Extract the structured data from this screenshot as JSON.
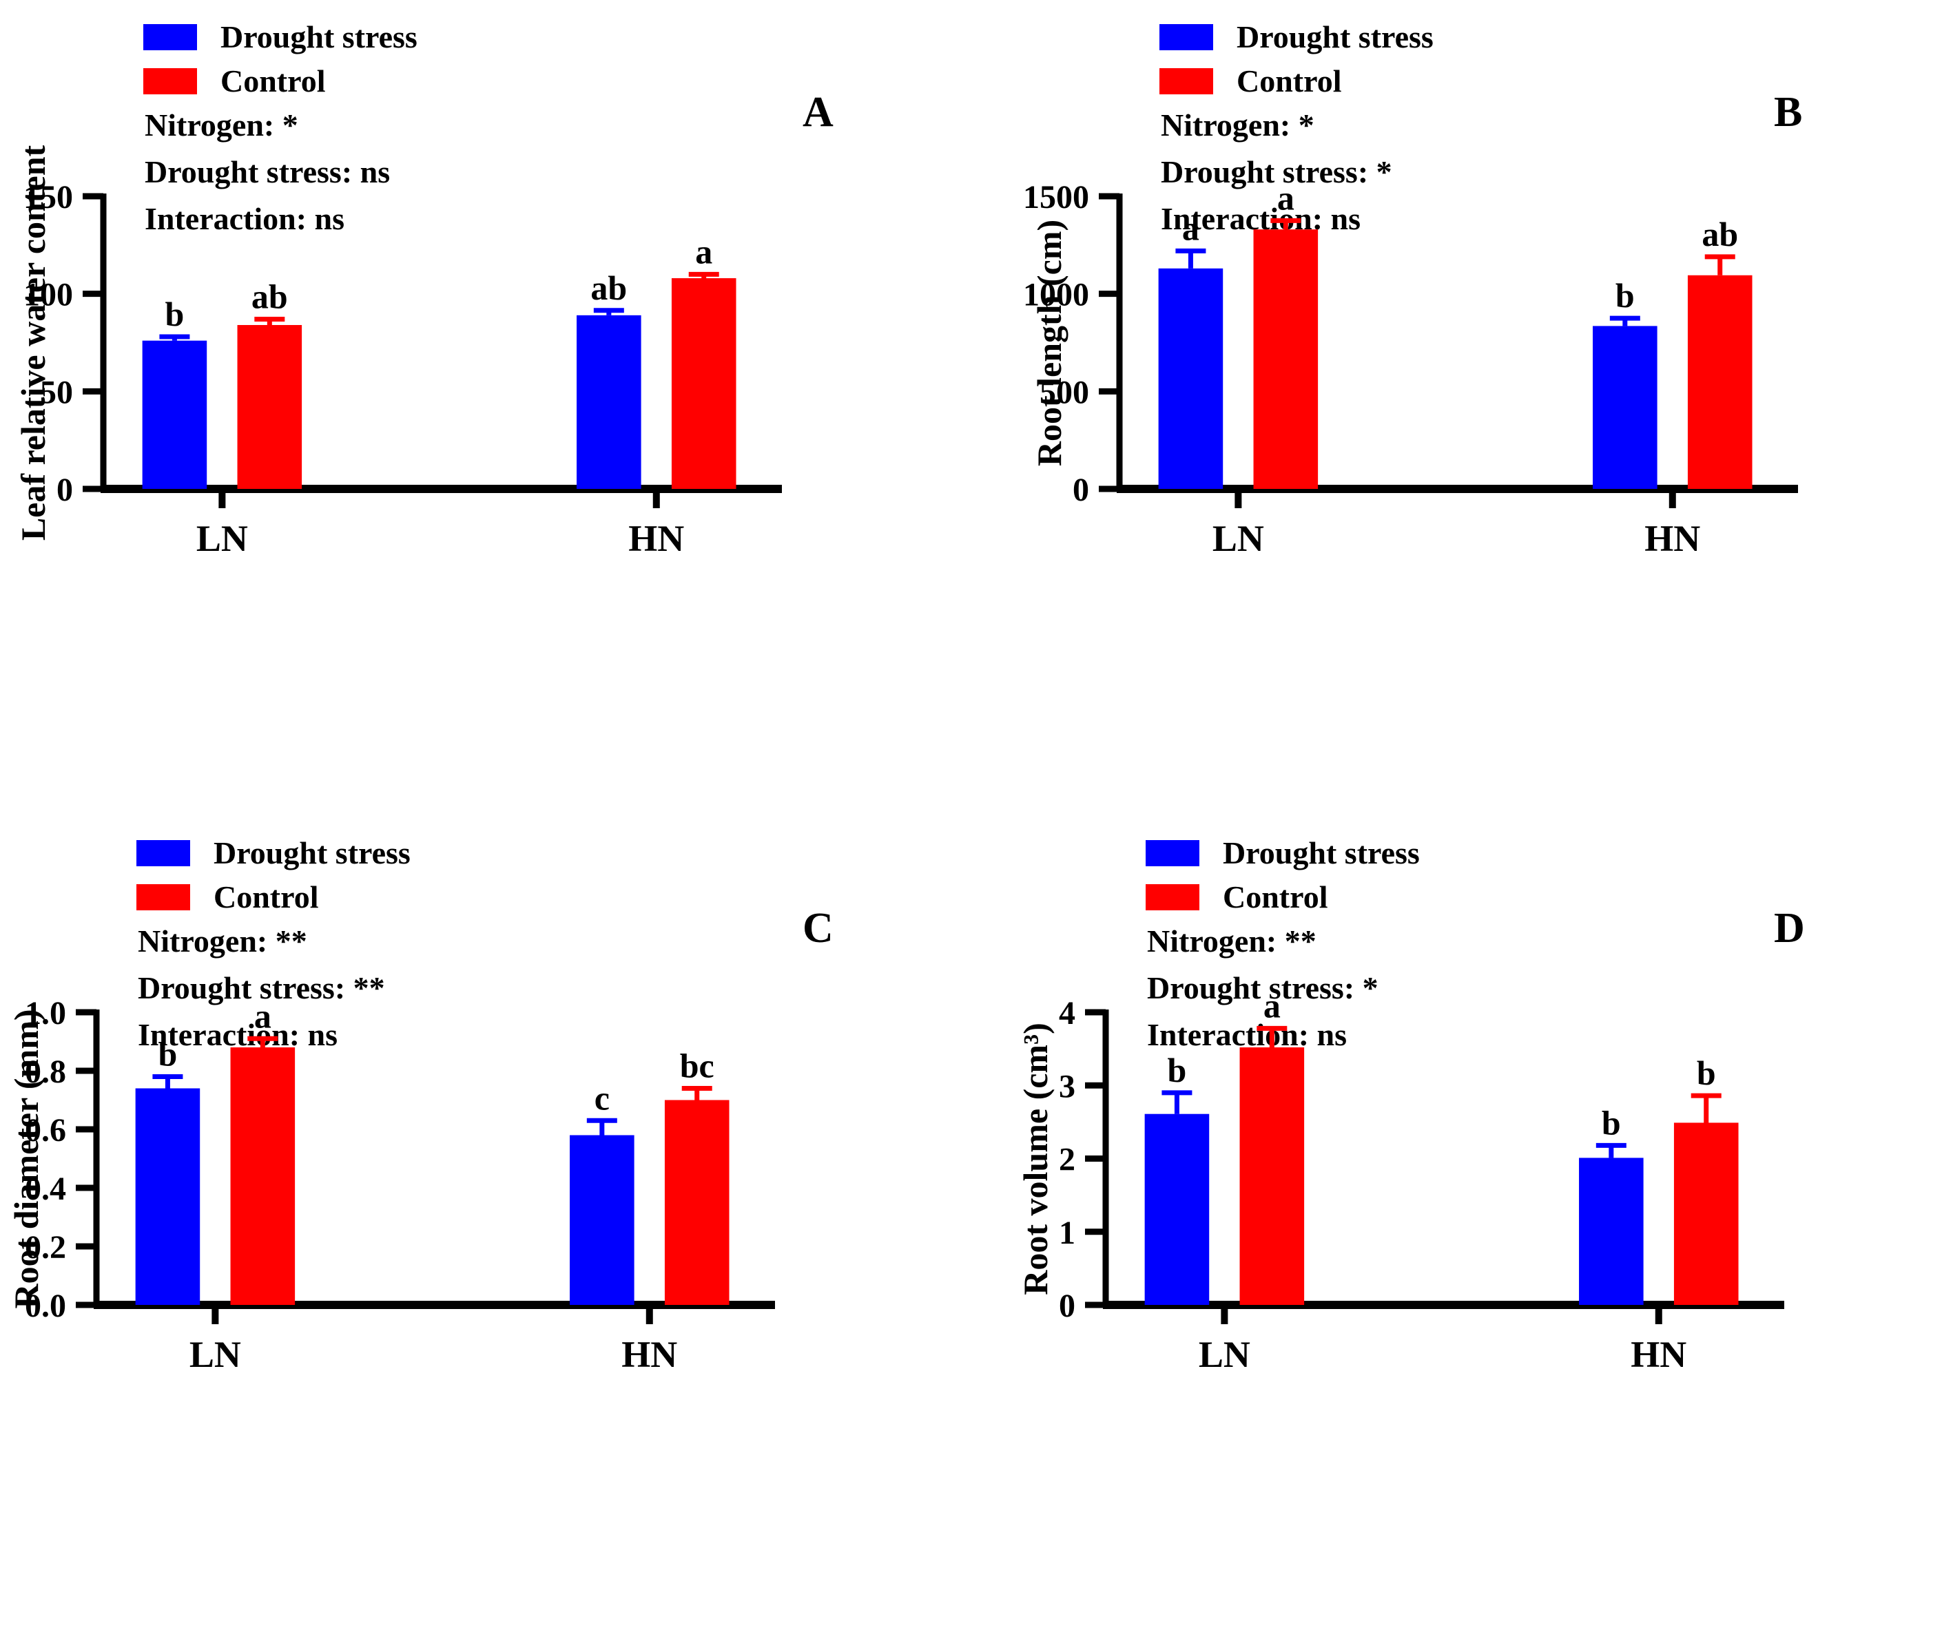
{
  "figure_title": "",
  "colors": {
    "drought_stress": "#0000ff",
    "control": "#ff0000",
    "axis": "#000000",
    "background": "#ffffff"
  },
  "legend": {
    "items": [
      {
        "label": "Drought stress",
        "color": "#0000ff"
      },
      {
        "label": "Control",
        "color": "#ff0000"
      }
    ]
  },
  "chart_data": [
    {
      "type": "bar",
      "panel": "A",
      "ylabel": "Leaf relative water content",
      "xlabel": "",
      "ylim": [
        0,
        150
      ],
      "yticks": [
        "0",
        "50",
        "100",
        "150"
      ],
      "grid": false,
      "legend_position": "top-left-inside",
      "annotations": [
        "Nitrogen: *",
        "Drought stress: ns",
        "Interaction: ns"
      ],
      "categories": [
        "LN",
        "HN"
      ],
      "series": [
        {
          "name": "Drought stress",
          "color": "#0000ff",
          "values": [
            76,
            89
          ],
          "errors": [
            2,
            2.5
          ],
          "letters": [
            "b",
            "ab"
          ]
        },
        {
          "name": "Control",
          "color": "#ff0000",
          "values": [
            84,
            108
          ],
          "errors": [
            3,
            2
          ],
          "letters": [
            "ab",
            "a"
          ]
        }
      ]
    },
    {
      "type": "bar",
      "panel": "B",
      "ylabel": "Root length (cm)",
      "xlabel": "",
      "ylim": [
        0,
        1500
      ],
      "yticks": [
        "0",
        "500",
        "1000",
        "1500"
      ],
      "grid": false,
      "legend_position": "top-left-inside",
      "annotations": [
        "Nitrogen: *",
        "Drought stress: *",
        "Interaction: ns"
      ],
      "categories": [
        "LN",
        "HN"
      ],
      "series": [
        {
          "name": "Drought stress",
          "color": "#0000ff",
          "values": [
            1130,
            835
          ],
          "errors": [
            90,
            40
          ],
          "letters": [
            "a",
            "b"
          ]
        },
        {
          "name": "Control",
          "color": "#ff0000",
          "values": [
            1330,
            1095
          ],
          "errors": [
            45,
            95
          ],
          "letters": [
            "a",
            "ab"
          ]
        }
      ]
    },
    {
      "type": "bar",
      "panel": "C",
      "ylabel": "Root diameter (mm)",
      "xlabel": "",
      "ylim": [
        0,
        1.0
      ],
      "yticks": [
        "0.0",
        "0.2",
        "0.4",
        "0.6",
        "0.8",
        "1.0"
      ],
      "grid": false,
      "legend_position": "top-left-inside",
      "annotations": [
        "Nitrogen: **",
        "Drought stress: **",
        "Interaction: ns"
      ],
      "categories": [
        "LN",
        "HN"
      ],
      "series": [
        {
          "name": "Drought stress",
          "color": "#0000ff",
          "values": [
            0.74,
            0.58
          ],
          "errors": [
            0.04,
            0.05
          ],
          "letters": [
            "b",
            "c"
          ]
        },
        {
          "name": "Control",
          "color": "#ff0000",
          "values": [
            0.88,
            0.7
          ],
          "errors": [
            0.03,
            0.04
          ],
          "letters": [
            "a",
            "bc"
          ]
        }
      ]
    },
    {
      "type": "bar",
      "panel": "D",
      "ylabel": "Root volume (cm³)",
      "xlabel": "",
      "ylim": [
        0,
        4
      ],
      "yticks": [
        "0",
        "1",
        "2",
        "3",
        "4"
      ],
      "grid": false,
      "legend_position": "top-left-inside",
      "annotations": [
        "Nitrogen: **",
        "Drought stress: *",
        "Interaction: ns"
      ],
      "categories": [
        "LN",
        "HN"
      ],
      "series": [
        {
          "name": "Drought stress",
          "color": "#0000ff",
          "values": [
            2.61,
            2.01
          ],
          "errors": [
            0.29,
            0.17
          ],
          "letters": [
            "b",
            "b"
          ]
        },
        {
          "name": "Control",
          "color": "#ff0000",
          "values": [
            3.52,
            2.49
          ],
          "errors": [
            0.26,
            0.37
          ],
          "letters": [
            "a",
            "b"
          ]
        }
      ]
    }
  ]
}
